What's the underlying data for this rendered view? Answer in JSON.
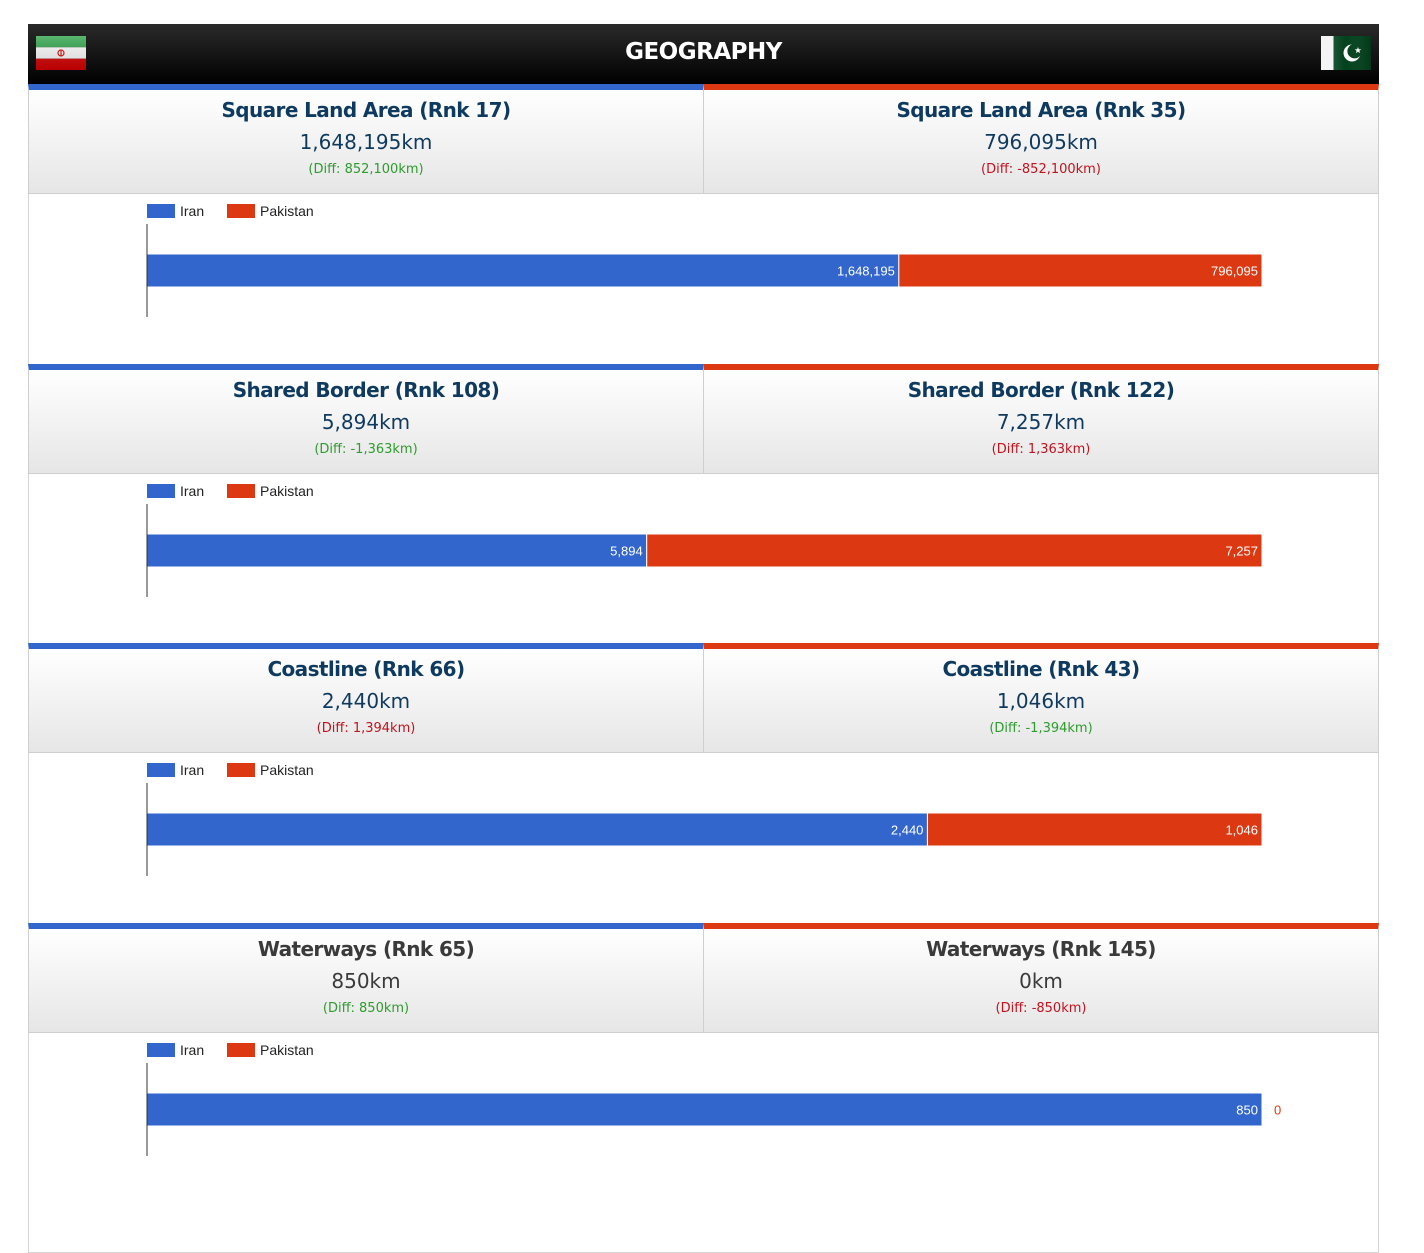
{
  "header": {
    "title": "GEOGRAPHY"
  },
  "countries": {
    "left": "Iran",
    "right": "Pakistan"
  },
  "colors": {
    "left": "#3366cc",
    "right": "#dc3912",
    "positive_diff": "#2e9c2e",
    "negative_diff": "#c0141f"
  },
  "sections": [
    {
      "left": {
        "label": "Square Land Area (Rnk 17)",
        "value": "1,648,195km",
        "diff": "(Diff: 852,100km)",
        "diff_sign": "pos"
      },
      "right": {
        "label": "Square Land Area (Rnk 35)",
        "value": "796,095km",
        "diff": "(Diff: -852,100km)",
        "diff_sign": "neg"
      }
    },
    {
      "left": {
        "label": "Shared Border (Rnk 108)",
        "value": "5,894km",
        "diff": "(Diff: -1,363km)",
        "diff_sign": "pos"
      },
      "right": {
        "label": "Shared Border (Rnk 122)",
        "value": "7,257km",
        "diff": "(Diff: 1,363km)",
        "diff_sign": "neg"
      }
    },
    {
      "left": {
        "label": "Coastline (Rnk 66)",
        "value": "2,440km",
        "diff": "(Diff: 1,394km)",
        "diff_sign": "neg"
      },
      "right": {
        "label": "Coastline (Rnk 43)",
        "value": "1,046km",
        "diff": "(Diff: -1,394km)",
        "diff_sign": "pos"
      }
    },
    {
      "left": {
        "label": "Waterways (Rnk 65)",
        "value": "850km",
        "diff": "(Diff: 850km)",
        "diff_sign": "pos"
      },
      "right": {
        "label": "Waterways (Rnk 145)",
        "value": "0km",
        "diff": "(Diff: -850km)",
        "diff_sign": "neg"
      }
    }
  ],
  "chart_data": [
    {
      "type": "bar",
      "stacked": true,
      "orientation": "horizontal",
      "percent_stacked": true,
      "series": [
        {
          "name": "Iran",
          "values": [
            1648195
          ],
          "labels": [
            "1,648,195"
          ]
        },
        {
          "name": "Pakistan",
          "values": [
            796095
          ],
          "labels": [
            "796,095"
          ]
        }
      ],
      "legend": "top-left"
    },
    {
      "type": "bar",
      "stacked": true,
      "orientation": "horizontal",
      "percent_stacked": true,
      "series": [
        {
          "name": "Iran",
          "values": [
            5894
          ],
          "labels": [
            "5,894"
          ]
        },
        {
          "name": "Pakistan",
          "values": [
            7257
          ],
          "labels": [
            "7,257"
          ]
        }
      ],
      "legend": "top-left"
    },
    {
      "type": "bar",
      "stacked": true,
      "orientation": "horizontal",
      "percent_stacked": true,
      "series": [
        {
          "name": "Iran",
          "values": [
            2440
          ],
          "labels": [
            "2,440"
          ]
        },
        {
          "name": "Pakistan",
          "values": [
            1046
          ],
          "labels": [
            "1,046"
          ]
        }
      ],
      "legend": "top-left"
    },
    {
      "type": "bar",
      "stacked": true,
      "orientation": "horizontal",
      "percent_stacked": true,
      "series": [
        {
          "name": "Iran",
          "values": [
            850
          ],
          "labels": [
            "850"
          ]
        },
        {
          "name": "Pakistan",
          "values": [
            0
          ],
          "labels": [
            "0"
          ]
        }
      ],
      "legend": "top-left"
    }
  ]
}
